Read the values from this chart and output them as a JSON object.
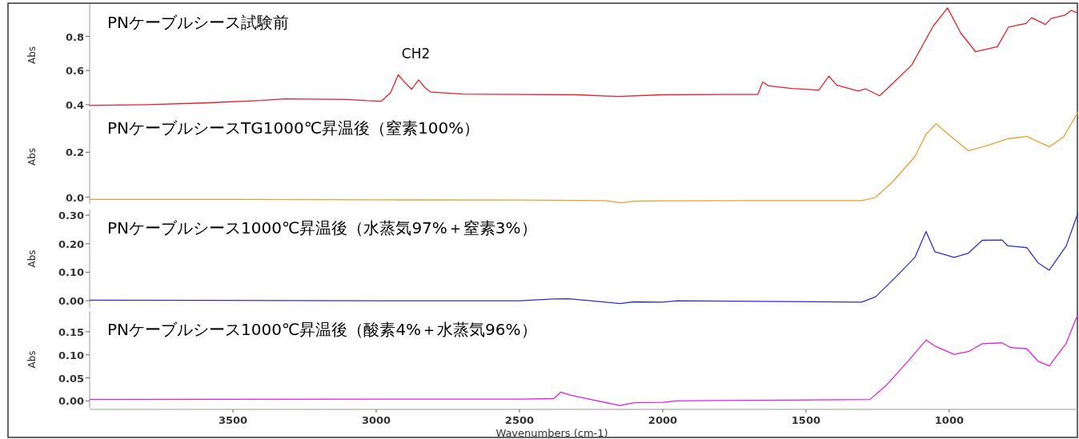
{
  "chart_data": [
    {
      "type": "line",
      "title": "PNケーブルシース試験前",
      "ylabel": "Abs",
      "xlim": [
        4000,
        550
      ],
      "ylim": [
        0.39,
        0.99
      ],
      "yticks": [
        0.4,
        0.6,
        0.8
      ],
      "tick_labels": "y",
      "annotations": [
        "CH2"
      ],
      "series": [
        {
          "color": "#e8202a",
          "x": [
            4000,
            3800,
            3600,
            3400,
            3320,
            3100,
            3032,
            2982,
            2950,
            2923,
            2900,
            2876,
            2852,
            2830,
            2810,
            2700,
            2500,
            2300,
            2156,
            2000,
            1800,
            1668,
            1651,
            1630,
            1550,
            1455,
            1420,
            1393,
            1318,
            1293,
            1243,
            1200,
            1131,
            1056,
            1006,
            960,
            908,
            832,
            793,
            732,
            713,
            664,
            645,
            595,
            575,
            550
          ],
          "values": [
            0.395,
            0.4,
            0.41,
            0.425,
            0.434,
            0.43,
            0.423,
            0.42,
            0.47,
            0.575,
            0.53,
            0.49,
            0.545,
            0.5,
            0.474,
            0.462,
            0.46,
            0.458,
            0.448,
            0.458,
            0.46,
            0.46,
            0.533,
            0.51,
            0.495,
            0.485,
            0.567,
            0.515,
            0.48,
            0.493,
            0.452,
            0.52,
            0.632,
            0.86,
            0.967,
            0.82,
            0.71,
            0.74,
            0.855,
            0.876,
            0.91,
            0.87,
            0.905,
            0.925,
            0.953,
            0.935
          ]
        }
      ]
    },
    {
      "type": "line",
      "title": "PNケーブルシースTG1000℃昇温後（窒素100%）",
      "ylabel": "Abs",
      "xlim": [
        4000,
        550
      ],
      "ylim": [
        -0.03,
        0.39
      ],
      "yticks": [
        {
          "value": 0,
          "label": "0.0"
        },
        {
          "value": 0.2,
          "label": "0.2"
        }
      ],
      "tick_labels": "y",
      "series": [
        {
          "color": "#e8a030",
          "x": [
            4000,
            3500,
            3000,
            2500,
            2200,
            2145,
            2100,
            2000,
            1700,
            1306,
            1257,
            1198,
            1120,
            1081,
            1046,
            1003,
            933,
            866,
            796,
            729,
            651,
            601,
            550
          ],
          "values": [
            -0.01,
            -0.01,
            -0.012,
            -0.013,
            -0.015,
            -0.025,
            -0.018,
            -0.016,
            -0.015,
            -0.015,
            -0.001,
            0.068,
            0.18,
            0.28,
            0.327,
            0.28,
            0.206,
            0.23,
            0.26,
            0.27,
            0.224,
            0.268,
            0.38
          ]
        }
      ]
    },
    {
      "type": "line",
      "title": "PNケーブルシース1000℃昇温後（水蒸気97%＋窒素3%）",
      "ylabel": "Abs",
      "xlim": [
        4000,
        550
      ],
      "ylim": [
        -0.025,
        0.32
      ],
      "yticks": [
        {
          "value": 0,
          "label": "0.00"
        },
        {
          "value": 0.1,
          "label": "0.10"
        },
        {
          "value": 0.2,
          "label": "0.20"
        },
        {
          "value": 0.3,
          "label": "0.30"
        }
      ],
      "tick_labels": "y",
      "series": [
        {
          "color": "#2a2ee0",
          "x": [
            4000,
            3000,
            2500,
            2380,
            2330,
            2250,
            2150,
            2100,
            2000,
            1950,
            1306,
            1257,
            1188,
            1120,
            1081,
            1050,
            983,
            933,
            885,
            816,
            796,
            729,
            690,
            651,
            592,
            550
          ],
          "values": [
            0.002,
            0.0,
            0.0,
            0.006,
            0.007,
            0.0,
            -0.01,
            -0.004,
            -0.005,
            0.0,
            -0.005,
            0.014,
            0.082,
            0.152,
            0.243,
            0.172,
            0.152,
            0.167,
            0.212,
            0.213,
            0.193,
            0.186,
            0.133,
            0.107,
            0.192,
            0.31
          ]
        }
      ]
    },
    {
      "type": "line",
      "title": "PNケーブルシース1000℃昇温後（酸素4%＋水蒸気96%）",
      "ylabel": "Abs",
      "xlabel": "Wavenumbers (cm-1)",
      "xlim": [
        4000,
        550
      ],
      "ylim": [
        -0.015,
        0.195
      ],
      "xticks": [
        3500,
        3000,
        2500,
        2000,
        1500,
        1000
      ],
      "yticks": [
        {
          "value": 0,
          "label": "0.00"
        },
        {
          "value": 0.05,
          "label": "0.05"
        },
        {
          "value": 0.1,
          "label": "0.10"
        },
        {
          "value": 0.15,
          "label": "0.15"
        }
      ],
      "series": [
        {
          "color": "#e020e0",
          "x": [
            4000,
            3000,
            2500,
            2380,
            2356,
            2320,
            2250,
            2150,
            2100,
            2000,
            1950,
            1800,
            1277,
            1218,
            1140,
            1081,
            1050,
            983,
            933,
            885,
            816,
            787,
            729,
            690,
            651,
            592,
            550
          ],
          "values": [
            0.003,
            0.004,
            0.004,
            0.005,
            0.019,
            0.012,
            0.003,
            -0.01,
            -0.004,
            -0.003,
            0.0,
            0.001,
            0.003,
            0.035,
            0.089,
            0.132,
            0.119,
            0.101,
            0.107,
            0.124,
            0.126,
            0.116,
            0.113,
            0.086,
            0.076,
            0.125,
            0.19
          ]
        }
      ]
    }
  ]
}
